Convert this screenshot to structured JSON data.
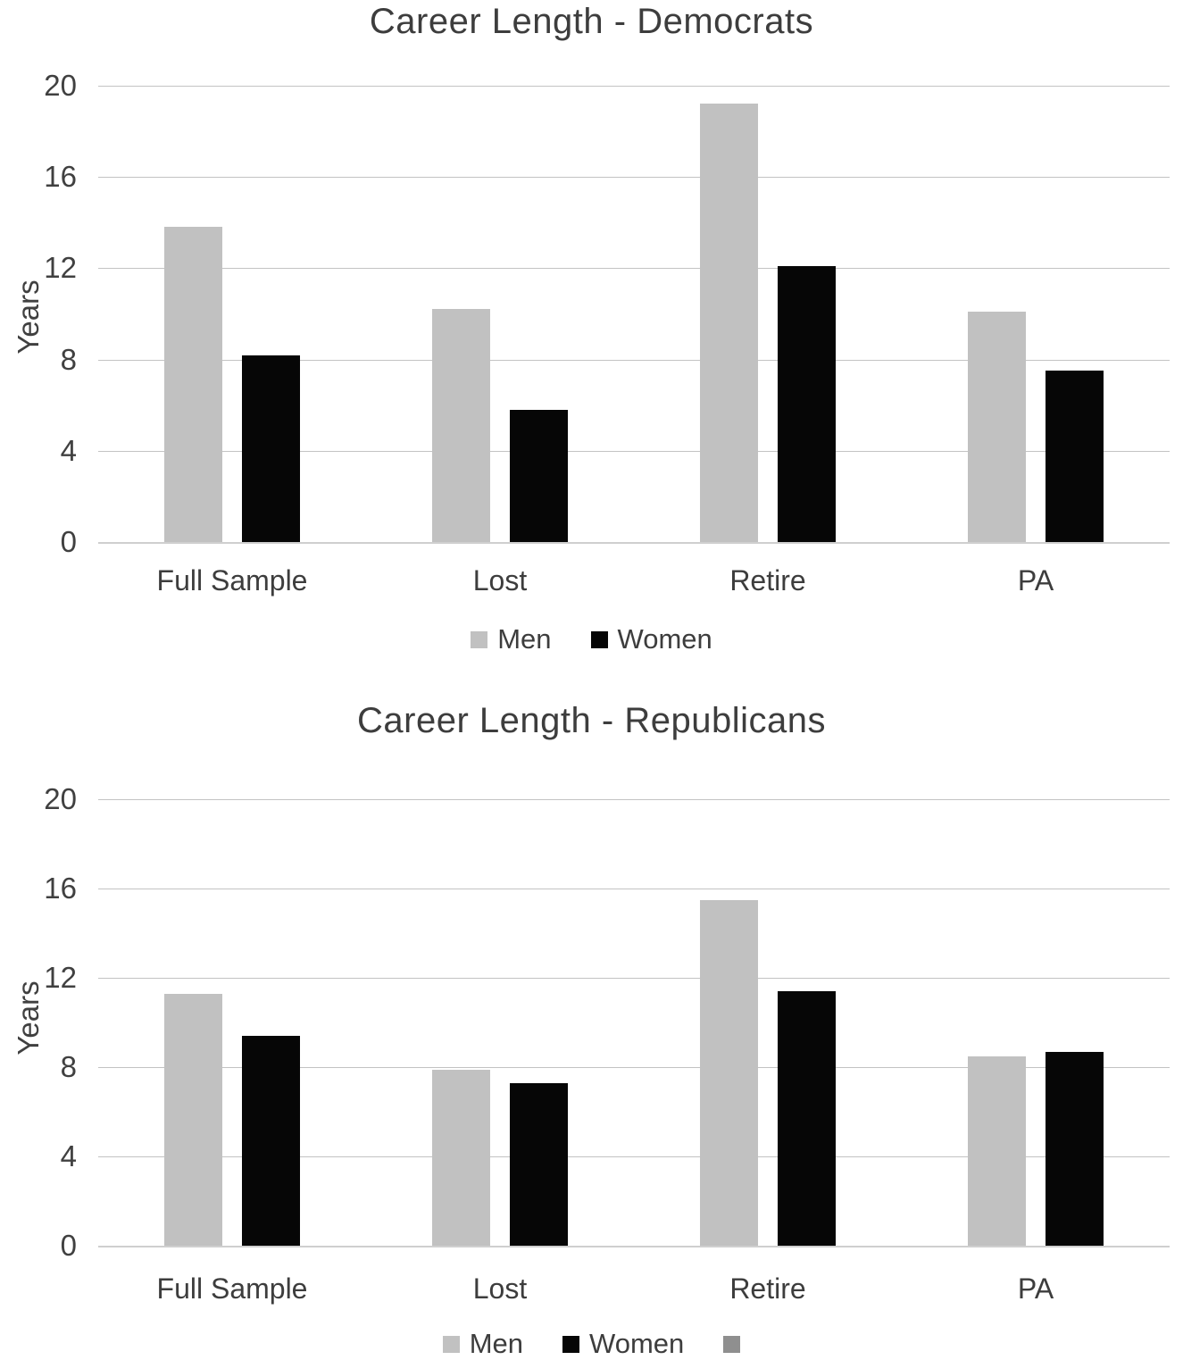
{
  "page": {
    "background": "#ffffff",
    "text_color": "#3d3d3d",
    "gridline_color": "#c3c3c3",
    "axis_line_color": "#cfcfcf"
  },
  "chart_data": [
    {
      "type": "bar",
      "title": "Career Length - Democrats",
      "ylabel": "Years",
      "xlabel": "",
      "ylim": [
        0,
        20
      ],
      "yticks": [
        20,
        16,
        12,
        8,
        4,
        0
      ],
      "grid": true,
      "legend_position": "bottom",
      "categories": [
        "Full Sample",
        "Lost",
        "Retire",
        "PA"
      ],
      "series": [
        {
          "name": "Men",
          "color": "#c1c1c1",
          "values": [
            13.8,
            10.2,
            19.2,
            10.1
          ]
        },
        {
          "name": "Women",
          "color": "#060606",
          "values": [
            8.2,
            5.8,
            12.1,
            7.5
          ]
        }
      ],
      "extra_legend_items": []
    },
    {
      "type": "bar",
      "title": "Career Length - Republicans",
      "ylabel": "Years",
      "xlabel": "",
      "ylim": [
        0,
        20
      ],
      "yticks": [
        20,
        16,
        12,
        8,
        4,
        0
      ],
      "grid": true,
      "legend_position": "bottom",
      "categories": [
        "Full Sample",
        "Lost",
        "Retire",
        "PA"
      ],
      "series": [
        {
          "name": "Men",
          "color": "#c1c1c1",
          "values": [
            11.3,
            7.9,
            15.5,
            8.5
          ]
        },
        {
          "name": "Women",
          "color": "#060606",
          "values": [
            9.4,
            7.3,
            11.4,
            8.7
          ]
        }
      ],
      "extra_legend_items": [
        {
          "label": "",
          "color": "#8f8f8f"
        }
      ]
    }
  ]
}
